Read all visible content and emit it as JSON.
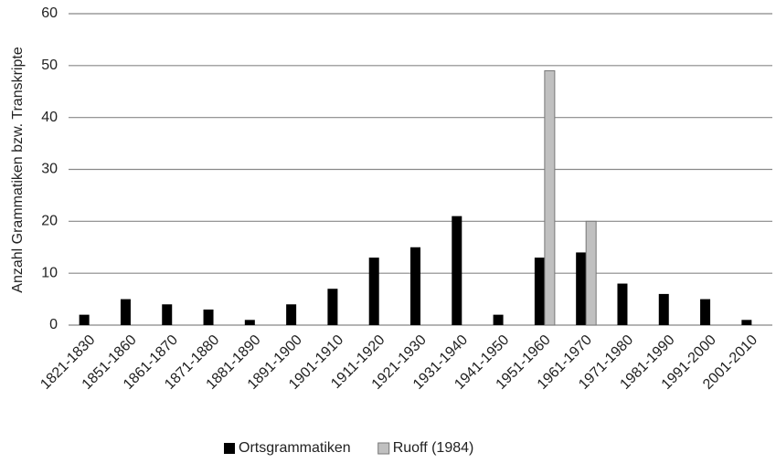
{
  "chart_data": {
    "type": "bar",
    "y_label": "Anzahl Grammatiken bzw. Transkripte",
    "categories": [
      "1821-1830",
      "1851-1860",
      "1861-1870",
      "1871-1880",
      "1881-1890",
      "1891-1900",
      "1901-1910",
      "1911-1920",
      "1921-1930",
      "1931-1940",
      "1941-1950",
      "1951-1960",
      "1961-1970",
      "1971-1980",
      "1981-1990",
      "1991-2000",
      "2001-2010"
    ],
    "series": [
      {
        "name": "Ortsgrammatiken",
        "color": "#000000",
        "values": [
          2,
          5,
          4,
          3,
          1,
          4,
          7,
          13,
          15,
          21,
          2,
          13,
          14,
          8,
          6,
          5,
          1
        ]
      },
      {
        "name": "Ruoff (1984)",
        "color": "#c0c0c0",
        "values": [
          null,
          null,
          null,
          null,
          null,
          null,
          null,
          null,
          null,
          null,
          null,
          49,
          20,
          null,
          null,
          null,
          null
        ]
      }
    ],
    "ylim": [
      0,
      60
    ],
    "yticks": [
      0,
      10,
      20,
      30,
      40,
      50,
      60
    ],
    "grid": true,
    "legend": "bottom"
  }
}
